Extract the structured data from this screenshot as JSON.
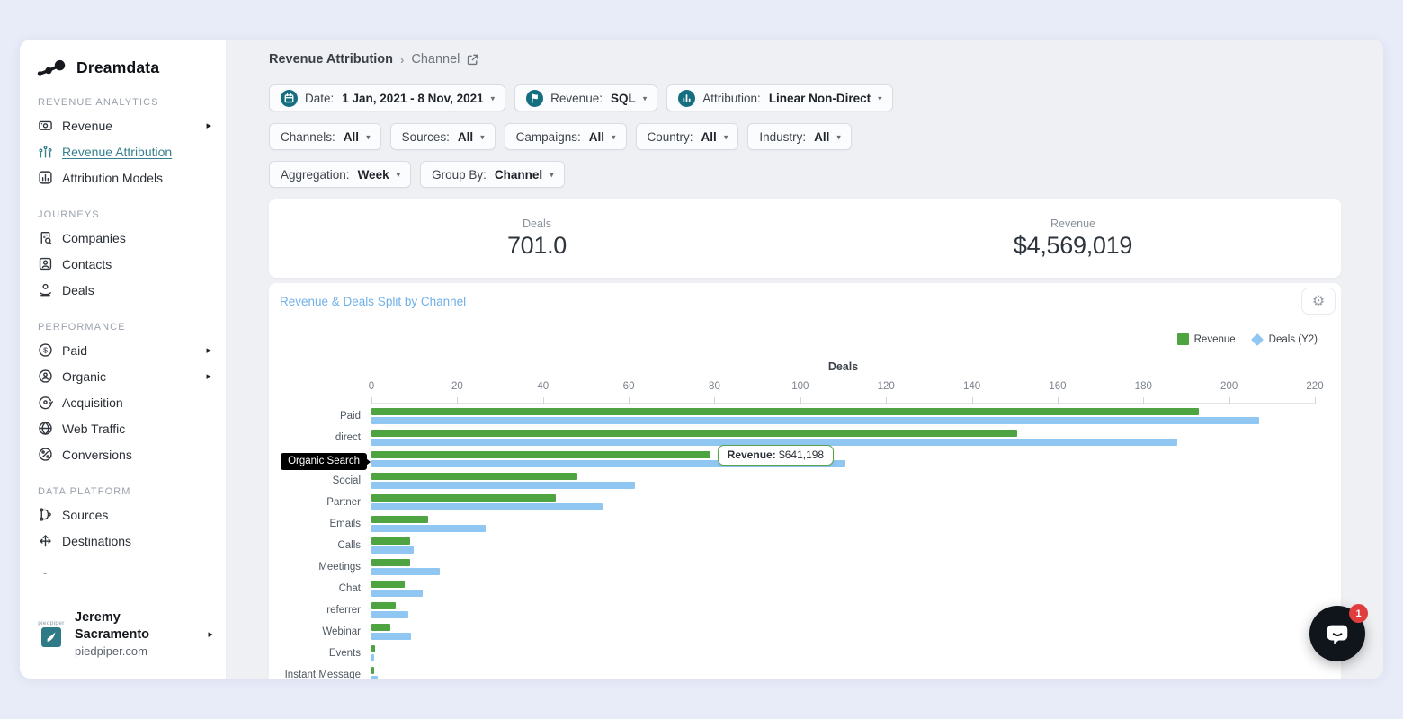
{
  "brand": {
    "name": "Dreamdata"
  },
  "colors": {
    "revenue_green": "#4ea441",
    "deals_blue": "#8fc6f2",
    "accent_teal": "#146e80",
    "chart_title_blue": "#6fb0e8",
    "badge_red": "#e03e3e"
  },
  "sidebar": {
    "sections": [
      {
        "label": "REVENUE ANALYTICS",
        "items": [
          {
            "label": "Revenue",
            "icon": "revenue-icon",
            "has_submenu": true
          },
          {
            "label": "Revenue Attribution",
            "icon": "revenue-attribution-icon",
            "active": true
          },
          {
            "label": "Attribution Models",
            "icon": "attribution-models-icon"
          }
        ]
      },
      {
        "label": "JOURNEYS",
        "items": [
          {
            "label": "Companies",
            "icon": "companies-icon"
          },
          {
            "label": "Contacts",
            "icon": "contacts-icon"
          },
          {
            "label": "Deals",
            "icon": "deals-icon"
          }
        ]
      },
      {
        "label": "PERFORMANCE",
        "items": [
          {
            "label": "Paid",
            "icon": "paid-icon",
            "has_submenu": true
          },
          {
            "label": "Organic",
            "icon": "organic-icon",
            "has_submenu": true
          },
          {
            "label": "Acquisition",
            "icon": "acquisition-icon"
          },
          {
            "label": "Web Traffic",
            "icon": "web-traffic-icon"
          },
          {
            "label": "Conversions",
            "icon": "conversions-icon"
          }
        ]
      },
      {
        "label": "DATA PLATFORM",
        "items": [
          {
            "label": "Sources",
            "icon": "sources-icon"
          },
          {
            "label": "Destinations",
            "icon": "destinations-icon"
          }
        ]
      }
    ],
    "footer_dash": "-",
    "user": {
      "name": "Jeremy Sacramento",
      "org": "piedpiper.com",
      "avatar_label": "piedpiper"
    }
  },
  "breadcrumb": {
    "parent": "Revenue Attribution",
    "separator": "›",
    "current": "Channel"
  },
  "filters": {
    "row1": [
      {
        "icon": "date-icon",
        "label": "Date:",
        "value": "1 Jan, 2021 - 8 Nov, 2021"
      },
      {
        "icon": "revenue-flag-icon",
        "label": "Revenue:",
        "value": "SQL"
      },
      {
        "icon": "attribution-model-icon",
        "label": "Attribution:",
        "value": "Linear Non-Direct"
      }
    ],
    "row2": [
      {
        "label": "Channels:",
        "value": "All"
      },
      {
        "label": "Sources:",
        "value": "All"
      },
      {
        "label": "Campaigns:",
        "value": "All"
      },
      {
        "label": "Country:",
        "value": "All"
      },
      {
        "label": "Industry:",
        "value": "All"
      }
    ],
    "row3": [
      {
        "label": "Aggregation:",
        "value": "Week"
      },
      {
        "label": "Group By:",
        "value": "Channel"
      }
    ]
  },
  "kpis": [
    {
      "label": "Deals",
      "value": "701.0"
    },
    {
      "label": "Revenue",
      "value": "$4,569,019"
    }
  ],
  "chart_data": {
    "type": "bar",
    "orientation": "horizontal",
    "title": "Revenue & Deals Split by Channel",
    "axis_title": "Deals",
    "xlim": [
      0,
      220
    ],
    "x_ticks": [
      0,
      20,
      40,
      60,
      80,
      100,
      120,
      140,
      160,
      180,
      200,
      220
    ],
    "grid": false,
    "legend_position": "top-right",
    "legend": [
      {
        "label": "Revenue",
        "marker": "square",
        "color": "#4ea441"
      },
      {
        "label": "Deals (Y2)",
        "marker": "diamond",
        "color": "#8fc6f2"
      }
    ],
    "categories": [
      "Paid",
      "direct",
      "Organic Search",
      "Social",
      "Partner",
      "Emails",
      "Calls",
      "Meetings",
      "Chat",
      "referrer",
      "Webinar",
      "Events",
      "Instant Message"
    ],
    "series": [
      {
        "name": "Revenue",
        "axis_units": [
          193,
          150.5,
          79,
          48,
          43,
          13.2,
          9,
          9,
          7.8,
          5.7,
          4.4,
          0.9,
          0.7
        ]
      },
      {
        "name": "Deals (Y2)",
        "axis_units": [
          207,
          188,
          110.5,
          61.5,
          54,
          26.6,
          9.9,
          16,
          12,
          8.6,
          9.2,
          0.7,
          1.4
        ]
      }
    ],
    "note": "Revenue bars are plotted on a hidden secondary axis; values listed are positions read against the visible Deals axis (0-220).",
    "highlighted_category": "Organic Search",
    "tooltip": {
      "label": "Revenue:",
      "value": "$641,198"
    }
  },
  "chat_widget": {
    "badge": "1"
  }
}
